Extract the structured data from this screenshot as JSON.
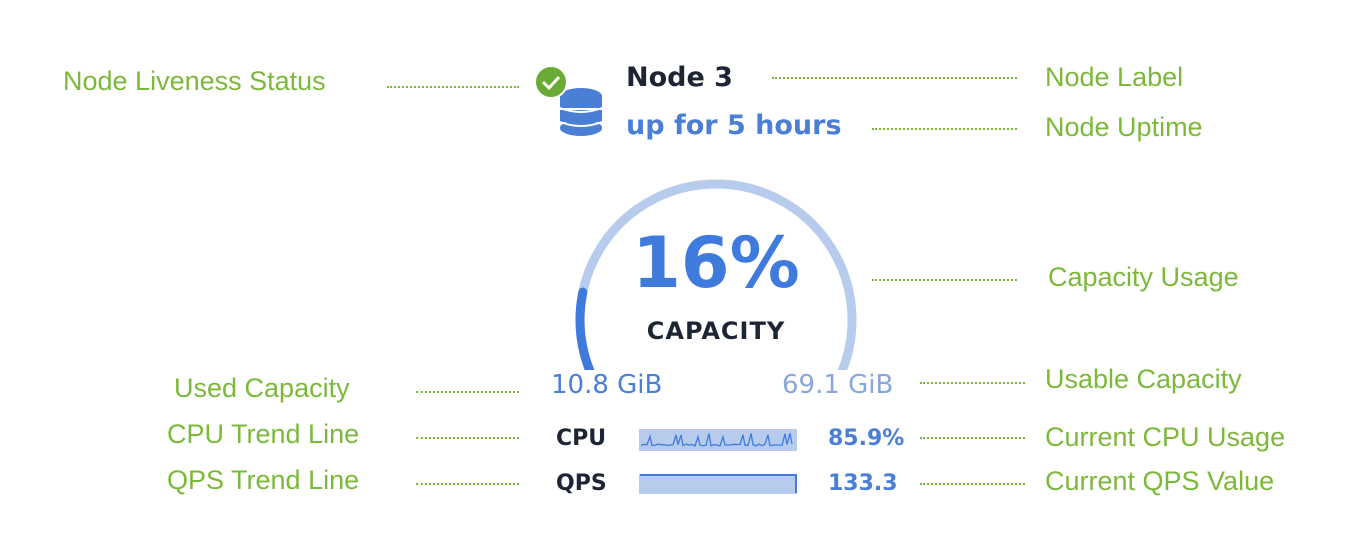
{
  "node": {
    "title": "Node 3",
    "uptime": "up for 5 hours",
    "liveness": "live",
    "capacity_percent_label": "16%",
    "capacity_label": "CAPACITY",
    "capacity_fraction": 0.16,
    "used": "10.8 GiB",
    "usable": "69.1 GiB",
    "cpu_label": "CPU",
    "cpu_value": "85.9%",
    "qps_label": "QPS",
    "qps_value": "133.3"
  },
  "annotations": {
    "liveness": "Node Liveness Status",
    "label": "Node Label",
    "uptime": "Node Uptime",
    "capacity": "Capacity Usage",
    "used": "Used Capacity",
    "usable": "Usable Capacity",
    "cpu_trend": "CPU Trend Line",
    "cpu_current": "Current CPU Usage",
    "qps_trend": "QPS Trend Line",
    "qps_current": "Current QPS Value"
  },
  "colors": {
    "annotation": "#7cb93a",
    "accent": "#3f7bdc",
    "track": "#b7cbed",
    "live": "#6aab36"
  }
}
